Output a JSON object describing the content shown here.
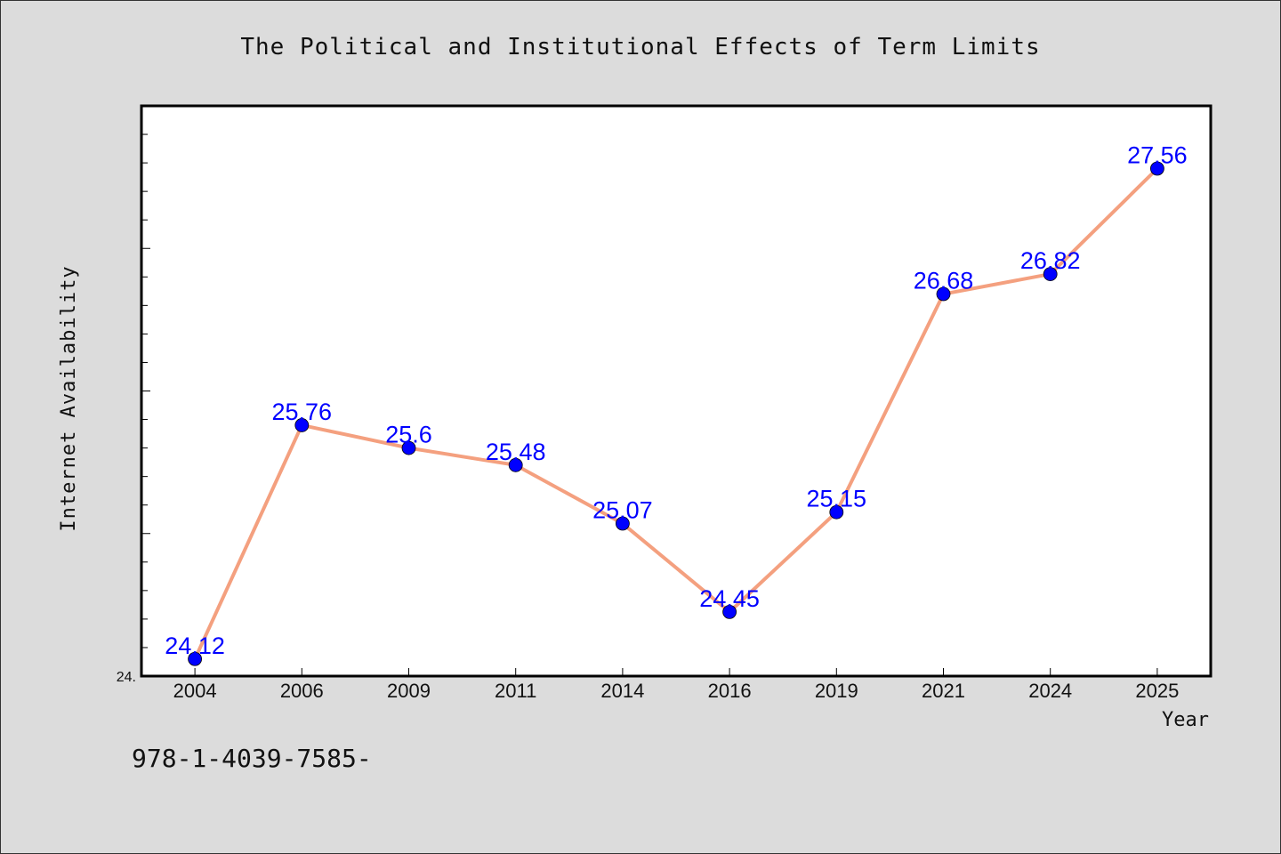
{
  "chart_data": {
    "type": "line",
    "title": "The Political and Institutional Effects of Term Limits",
    "xlabel": "Year",
    "ylabel": "Internet Availability",
    "categories": [
      "2004",
      "2006",
      "2009",
      "2011",
      "2014",
      "2016",
      "2019",
      "2021",
      "2024",
      "2025"
    ],
    "series": [
      {
        "values": [
          24.12,
          25.76,
          25.6,
          25.48,
          25.07,
          24.45,
          25.15,
          26.68,
          26.82,
          27.56
        ]
      }
    ],
    "data_labels": [
      "24.12",
      "25.76",
      "25.6",
      "25.48",
      "25.07",
      "24.45",
      "25.15",
      "26.68",
      "26.82",
      "27.56"
    ],
    "ylim": [
      24.0,
      28.0
    ],
    "y_tick_label": "24.",
    "grid": false,
    "line_color": "#f4a07f",
    "marker_color": "#0000ff",
    "label_color": "#0000ff"
  },
  "footer": {
    "text": "978-1-4039-7585-"
  }
}
